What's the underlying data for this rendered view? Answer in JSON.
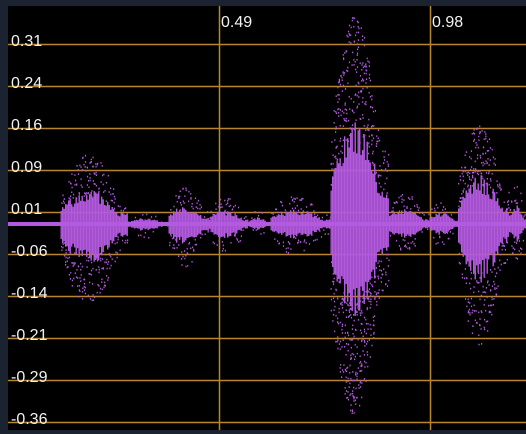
{
  "waveform": {
    "colors": {
      "background": "#000000",
      "grid": "#b8862e",
      "wave": "#b35ae0",
      "label": "#f2f2f2",
      "frame": "#1b2230"
    },
    "y_axis": {
      "labels": [
        "0.31",
        "0.24",
        "0.16",
        "0.09",
        "0.01",
        "-0.06",
        "-0.14",
        "-0.21",
        "-0.29",
        "-0.36"
      ]
    },
    "x_axis": {
      "labels": [
        "0.49",
        "0.98"
      ]
    }
  }
}
